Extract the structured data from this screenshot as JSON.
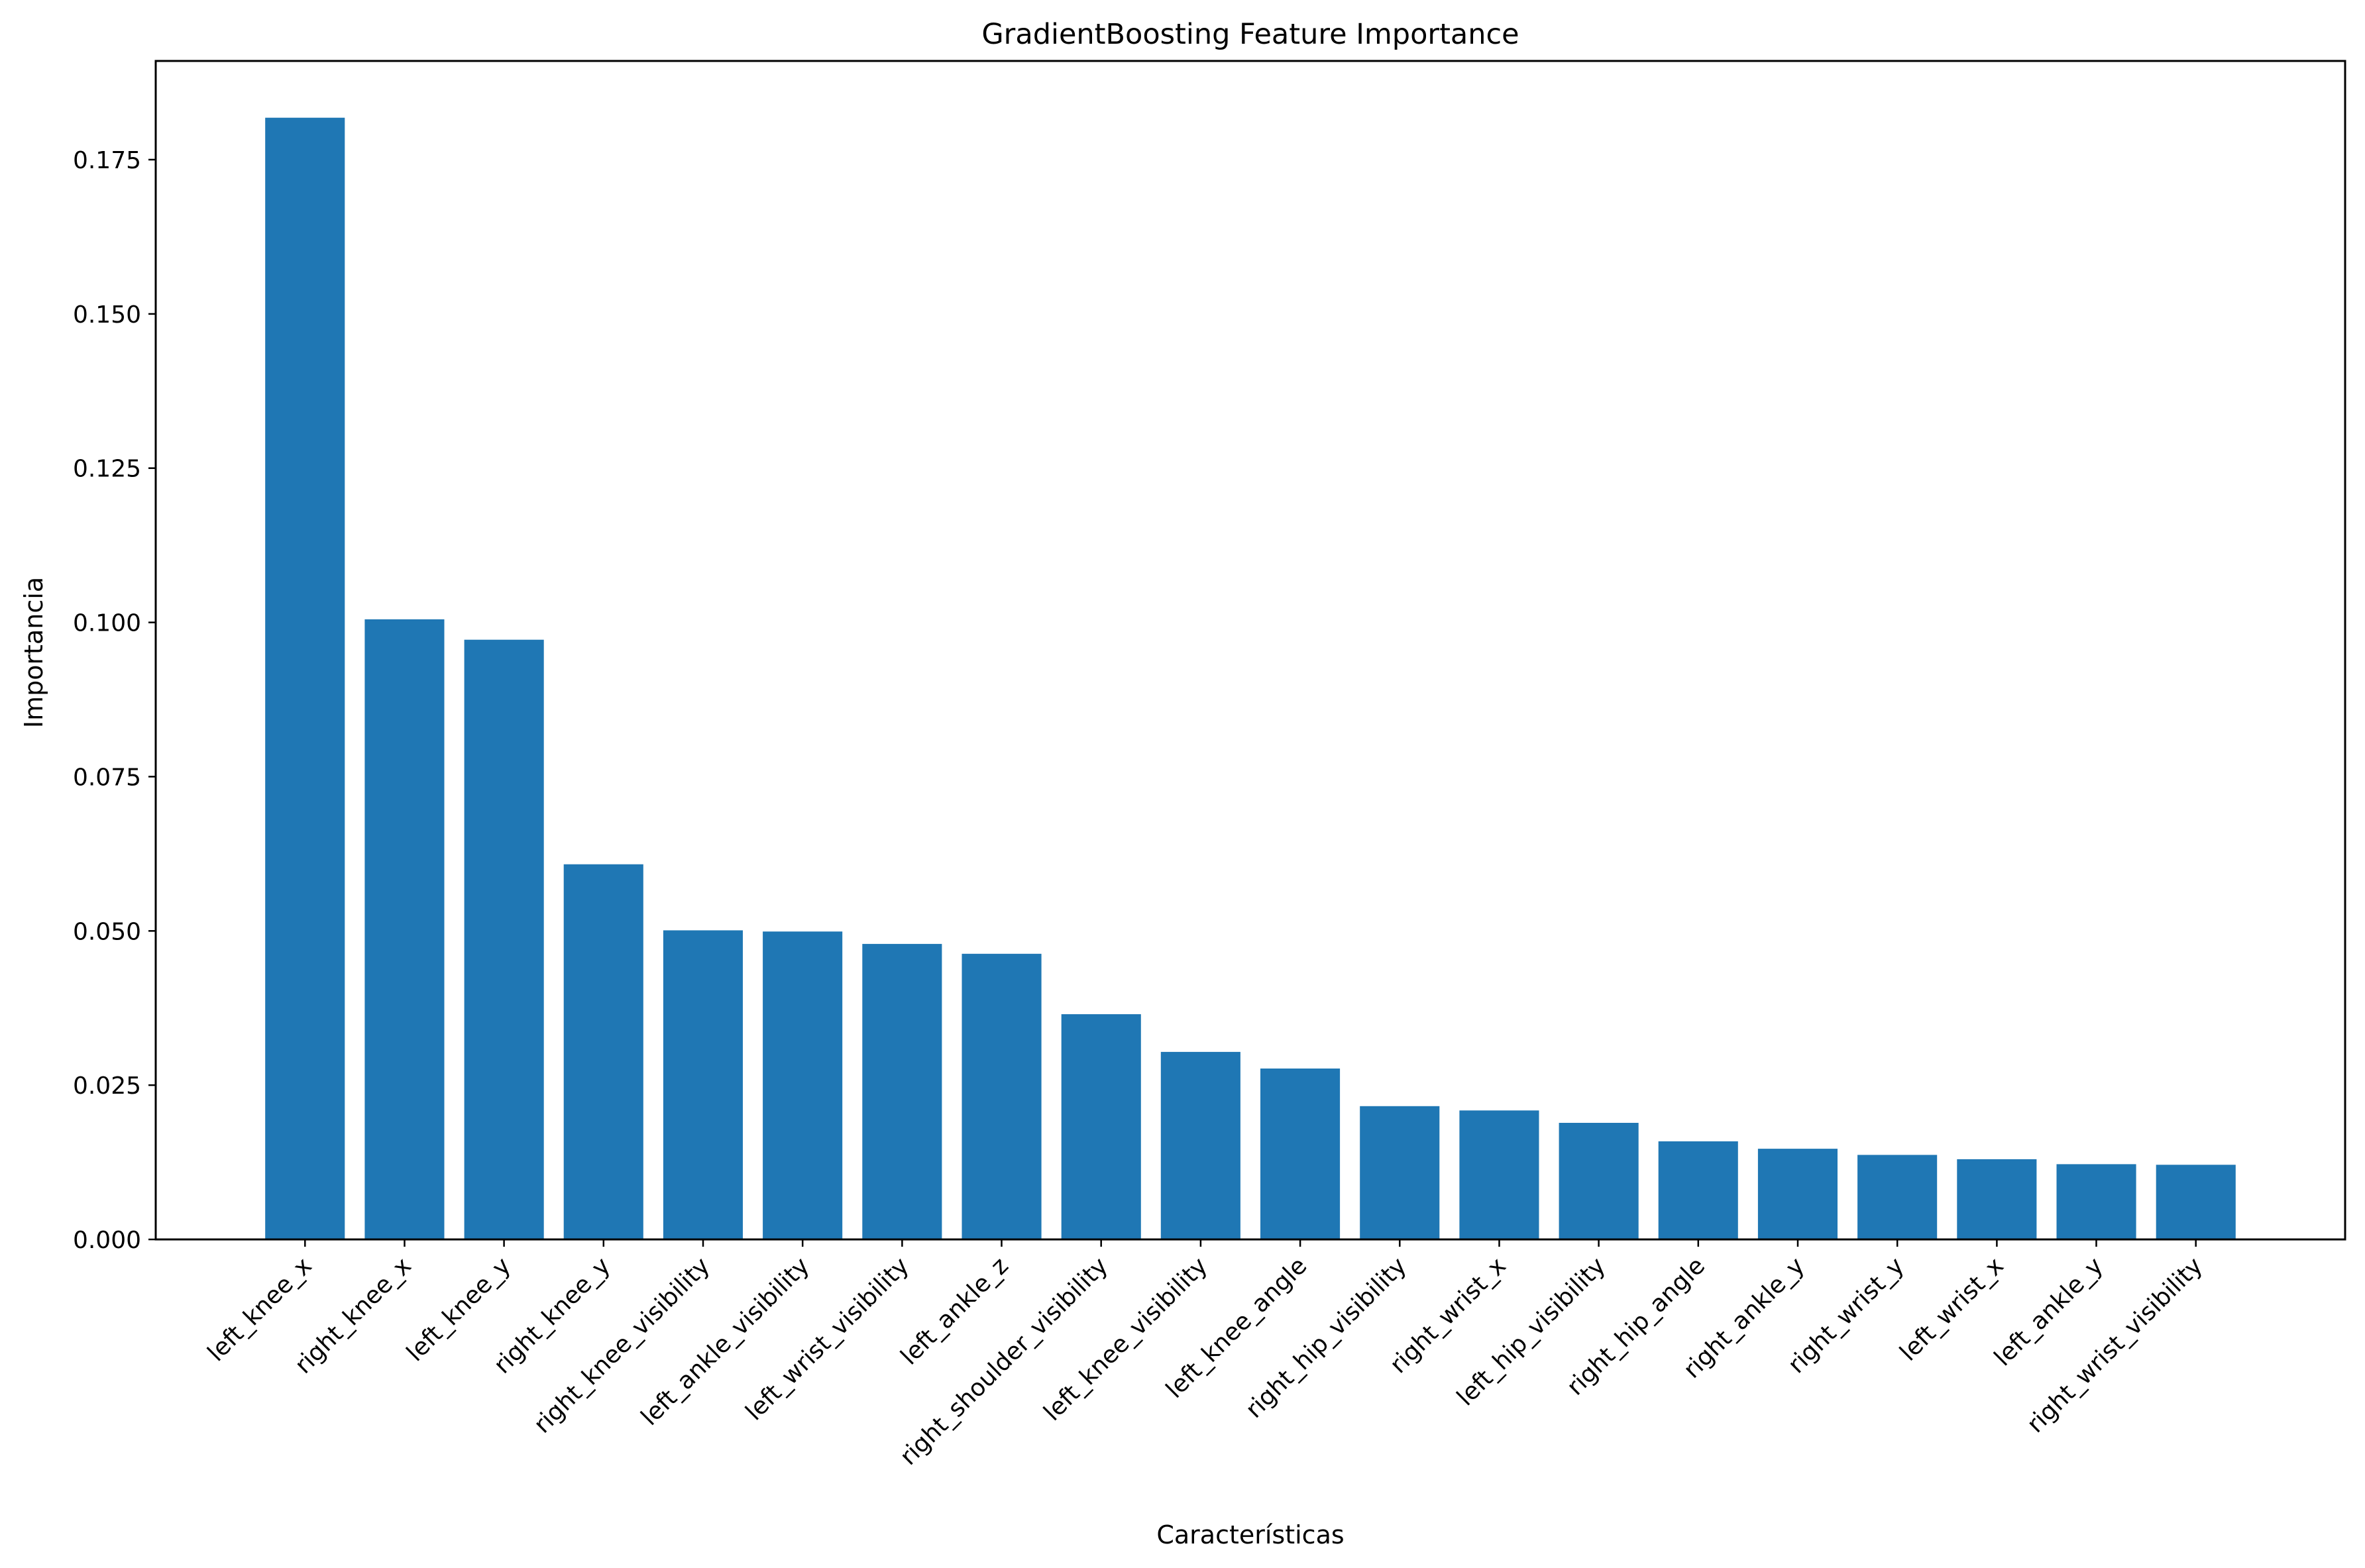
{
  "chart_data": {
    "type": "bar",
    "title": "GradientBoosting Feature Importance",
    "xlabel": "Características",
    "ylabel": "Importancia",
    "categories": [
      "left_knee_x",
      "right_knee_x",
      "left_knee_y",
      "right_knee_y",
      "right_knee_visibility",
      "left_ankle_visibility",
      "left_wrist_visibility",
      "left_ankle_z",
      "right_shoulder_visibility",
      "left_knee_visibility",
      "left_knee_angle",
      "right_hip_visibility",
      "right_wrist_x",
      "left_hip_visibility",
      "right_hip_angle",
      "right_ankle_y",
      "right_wrist_y",
      "left_wrist_x",
      "left_ankle_y",
      "right_wrist_visibility"
    ],
    "values": [
      0.1818,
      0.1005,
      0.0972,
      0.0608,
      0.0501,
      0.0499,
      0.0479,
      0.0463,
      0.0365,
      0.0304,
      0.0277,
      0.0216,
      0.0209,
      0.0189,
      0.0159,
      0.0147,
      0.0137,
      0.013,
      0.0122,
      0.0121
    ],
    "ylim": [
      0,
      0.191
    ],
    "yticks": [
      "0.000",
      "0.025",
      "0.050",
      "0.075",
      "0.100",
      "0.125",
      "0.150",
      "0.175"
    ],
    "bar_color": "#1f77b4",
    "grid": false,
    "legend": false
  }
}
